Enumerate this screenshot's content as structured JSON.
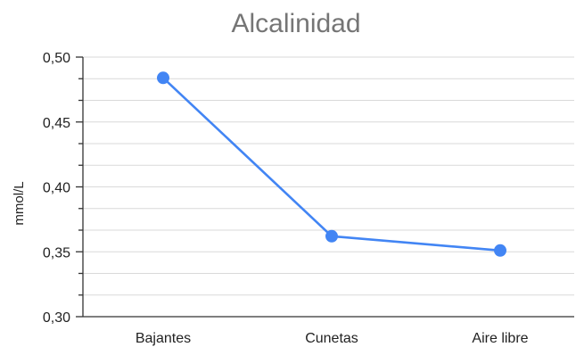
{
  "chart_data": {
    "type": "line",
    "title": "Alcalinidad",
    "xlabel": "",
    "ylabel": "mmol/L",
    "categories": [
      "Bajantes",
      "Cunetas",
      "Aire libre"
    ],
    "series": [
      {
        "values": [
          0.484,
          0.362,
          0.351
        ]
      }
    ],
    "ylim": [
      0.3,
      0.5
    ],
    "yticks": [
      0.3,
      0.35,
      0.4,
      0.45,
      0.5
    ],
    "ytick_labels": [
      "0,30",
      "0,35",
      "0,40",
      "0,45",
      "0,50"
    ],
    "minor_ticks_per_major": 2,
    "grid": true,
    "legend": "none",
    "colors": {
      "series": "#4285f4",
      "grid": "#d9d9d9",
      "axis": "#333333",
      "title": "#757575",
      "text": "#222222"
    }
  }
}
